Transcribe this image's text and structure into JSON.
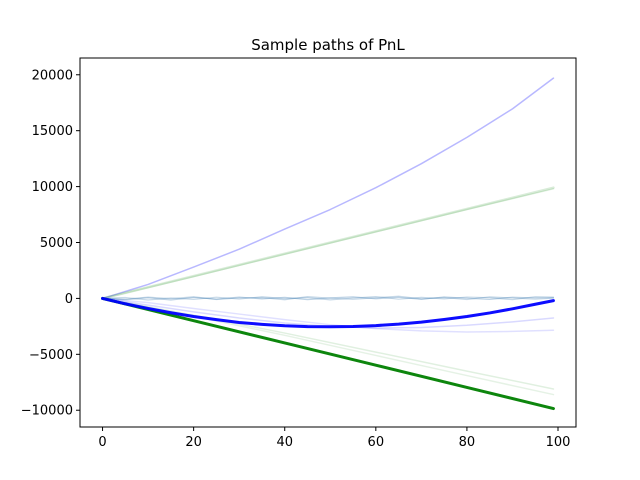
{
  "chart_data": {
    "type": "line",
    "title": "Sample paths of PnL",
    "xlabel": "",
    "ylabel": "",
    "xlim": [
      -4.95,
      103.95
    ],
    "ylim": [
      -11500,
      21500
    ],
    "xticks": [
      0,
      20,
      40,
      60,
      80,
      100
    ],
    "yticks": [
      -10000,
      -5000,
      0,
      5000,
      10000,
      15000,
      20000
    ],
    "grid": false,
    "legend": "none",
    "series": [
      {
        "color": "#0000ff",
        "opacity": 0.28,
        "width": 1.5,
        "x": [
          0,
          10,
          20,
          30,
          40,
          50,
          60,
          70,
          80,
          90,
          99
        ],
        "y": [
          0,
          1250,
          2800,
          4400,
          6200,
          7950,
          9900,
          12050,
          14400,
          16950,
          19700
        ]
      },
      {
        "color": "#008000",
        "opacity": 0.15,
        "width": 2.5,
        "x": [
          0,
          20,
          40,
          60,
          80,
          99
        ],
        "y": [
          0,
          2000,
          4000,
          6000,
          8000,
          9900
        ]
      },
      {
        "color": "#008000",
        "opacity": 0.12,
        "width": 1.5,
        "x": [
          0,
          20,
          40,
          60,
          80,
          99
        ],
        "y": [
          0,
          1950,
          3950,
          5950,
          7950,
          9800
        ]
      },
      {
        "color": "#4682b4",
        "opacity": 0.35,
        "width": 1.2,
        "x": [
          0,
          5,
          10,
          15,
          20,
          25,
          30,
          35,
          40,
          45,
          50,
          55,
          60,
          65,
          70,
          75,
          80,
          85,
          90,
          95,
          99
        ],
        "y": [
          0,
          -120,
          60,
          -150,
          80,
          -60,
          120,
          -40,
          90,
          -110,
          50,
          140,
          -30,
          100,
          -80,
          130,
          20,
          -90,
          110,
          40,
          70
        ]
      },
      {
        "color": "#4682b4",
        "opacity": 0.3,
        "width": 1.2,
        "x": [
          0,
          5,
          10,
          15,
          20,
          25,
          30,
          35,
          40,
          45,
          50,
          55,
          60,
          65,
          70,
          75,
          80,
          85,
          90,
          95,
          99
        ],
        "y": [
          0,
          80,
          -140,
          40,
          -90,
          110,
          -60,
          150,
          -20,
          70,
          -130,
          30,
          160,
          -70,
          90,
          -40,
          120,
          60,
          -110,
          150,
          120
        ]
      },
      {
        "color": "#4682b4",
        "opacity": 0.3,
        "width": 1.2,
        "x": [
          0,
          5,
          10,
          15,
          20,
          25,
          30,
          35,
          40,
          45,
          50,
          55,
          60,
          65,
          70,
          75,
          80,
          85,
          90,
          95,
          99
        ],
        "y": [
          0,
          -60,
          120,
          -30,
          150,
          -100,
          40,
          70,
          -120,
          160,
          20,
          -80,
          60,
          190,
          -40,
          80,
          -100,
          140,
          30,
          -70,
          20
        ]
      },
      {
        "color": "#0000ff",
        "opacity": 0.12,
        "width": 1.5,
        "x": [
          0,
          10,
          20,
          30,
          40,
          50,
          60,
          70,
          80,
          90,
          99
        ],
        "y": [
          0,
          -380,
          -900,
          -1400,
          -1900,
          -2350,
          -2700,
          -2900,
          -3000,
          -2950,
          -2850
        ]
      },
      {
        "color": "#0000ff",
        "opacity": 0.15,
        "width": 1.5,
        "x": [
          0,
          10,
          20,
          30,
          40,
          50,
          60,
          70,
          80,
          90,
          99
        ],
        "y": [
          0,
          -600,
          -1200,
          -1750,
          -2200,
          -2500,
          -2650,
          -2600,
          -2400,
          -2100,
          -1750
        ]
      },
      {
        "color": "#008000",
        "opacity": 0.12,
        "width": 1.5,
        "x": [
          0,
          20,
          40,
          60,
          80,
          99
        ],
        "y": [
          0,
          -1500,
          -3100,
          -4800,
          -6500,
          -8100
        ]
      },
      {
        "color": "#008000",
        "opacity": 0.1,
        "width": 1.5,
        "x": [
          0,
          20,
          40,
          60,
          80,
          99
        ],
        "y": [
          0,
          -1600,
          -3300,
          -5100,
          -6900,
          -8600
        ]
      },
      {
        "color": "#008000",
        "opacity": 0.95,
        "width": 3,
        "x": [
          0,
          20,
          40,
          60,
          80,
          99
        ],
        "y": [
          0,
          -1990,
          -3980,
          -5970,
          -7960,
          -9850
        ]
      },
      {
        "color": "#0000ff",
        "opacity": 0.95,
        "width": 3,
        "x": [
          0,
          5,
          10,
          15,
          20,
          25,
          30,
          35,
          40,
          45,
          50,
          55,
          60,
          65,
          70,
          75,
          80,
          85,
          90,
          95,
          99
        ],
        "y": [
          0,
          -480,
          -900,
          -1280,
          -1620,
          -1900,
          -2150,
          -2320,
          -2450,
          -2520,
          -2540,
          -2510,
          -2430,
          -2300,
          -2120,
          -1890,
          -1620,
          -1300,
          -930,
          -520,
          -200
        ]
      }
    ]
  }
}
